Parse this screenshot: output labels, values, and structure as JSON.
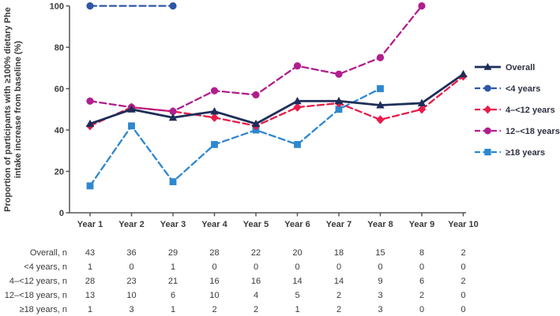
{
  "figure_background": "#ffffff",
  "text_color": "#3a3a3a",
  "axis_color": "#555555",
  "chart_data": {
    "type": "line",
    "title": "",
    "ylabel_line1": "Proportion of participants with ≥100% dietary Phe",
    "ylabel_line2": "intake increase from baseline (%)",
    "xlabel": "",
    "x_categories": [
      "Year 1",
      "Year 2",
      "Year 3",
      "Year 4",
      "Year 5",
      "Year 6",
      "Year 7",
      "Year 8",
      "Year 9",
      "Year 10"
    ],
    "ylim": [
      0,
      100
    ],
    "yticks": [
      0,
      20,
      40,
      60,
      80,
      100
    ],
    "grid": false,
    "legend_position": "right",
    "series": [
      {
        "name": "Overall",
        "color": "#1e2d58",
        "line": "solid",
        "marker": "triangle",
        "values": [
          43,
          50,
          46,
          49,
          43,
          54,
          54,
          52,
          53,
          67
        ]
      },
      {
        "name": "<4 years",
        "color": "#2d57a7",
        "line": "dashed",
        "marker": "circle",
        "values": [
          100,
          null,
          100,
          null,
          null,
          null,
          null,
          null,
          null,
          null
        ]
      },
      {
        "name": "4–<12 years",
        "color": "#e81c4a",
        "line": "dashed",
        "marker": "diamond",
        "values": [
          42,
          51,
          49,
          46,
          42,
          51,
          53,
          45,
          50,
          66
        ]
      },
      {
        "name": "12–<18 years",
        "color": "#b21e8e",
        "line": "dashed",
        "marker": "circle",
        "values": [
          54,
          51,
          49,
          59,
          57,
          71,
          67,
          75,
          100,
          null
        ]
      },
      {
        "name": "≥18 years",
        "color": "#2e87cf",
        "line": "dashed",
        "marker": "square",
        "values": [
          13,
          42,
          15,
          33,
          40,
          33,
          50,
          60,
          null,
          null
        ]
      }
    ]
  },
  "table": {
    "rows": [
      {
        "label": "Overall, n",
        "values": [
          "43",
          "36",
          "29",
          "28",
          "22",
          "20",
          "18",
          "15",
          "8",
          "2"
        ]
      },
      {
        "label": "<4 years, n",
        "values": [
          "1",
          "0",
          "1",
          "0",
          "0",
          "0",
          "0",
          "0",
          "0",
          "0"
        ]
      },
      {
        "label": "4–<12 years, n",
        "values": [
          "28",
          "23",
          "21",
          "16",
          "16",
          "14",
          "14",
          "9",
          "6",
          "2"
        ]
      },
      {
        "label": "12–<18 years, n",
        "values": [
          "13",
          "10",
          "6",
          "10",
          "4",
          "5",
          "2",
          "3",
          "2",
          "0"
        ]
      },
      {
        "label": "≥18 years, n",
        "values": [
          "1",
          "3",
          "1",
          "2",
          "2",
          "1",
          "2",
          "3",
          "0",
          "0"
        ]
      }
    ]
  }
}
